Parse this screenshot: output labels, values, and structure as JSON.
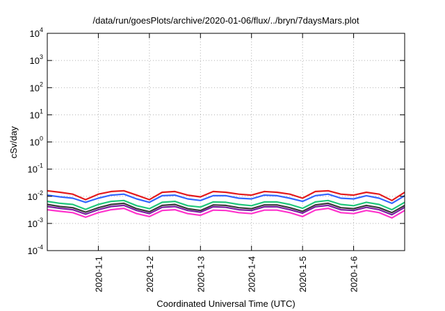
{
  "chart_data": {
    "type": "line",
    "title": "/data/run/goesPlots/archive/2020-01-06/flux/../bryn/7daysMars.plot",
    "xlabel": "Coordinated Universal Time (UTC)",
    "ylabel": "cSv/day",
    "y_scale": "log",
    "ylim": [
      0.0001,
      10000
    ],
    "y_ticks": [
      {
        "value": 0.0001,
        "base": "10",
        "exp": "-4"
      },
      {
        "value": 0.001,
        "base": "10",
        "exp": "-3"
      },
      {
        "value": 0.01,
        "base": "10",
        "exp": "-2"
      },
      {
        "value": 0.1,
        "base": "10",
        "exp": "-1"
      },
      {
        "value": 1,
        "base": "10",
        "exp": "0"
      },
      {
        "value": 10,
        "base": "10",
        "exp": "1"
      },
      {
        "value": 100,
        "base": "10",
        "exp": "2"
      },
      {
        "value": 1000,
        "base": "10",
        "exp": "3"
      },
      {
        "value": 10000,
        "base": "10",
        "exp": "4"
      }
    ],
    "xlim": [
      "2019-12-31T00:00",
      "2020-01-07T00:00"
    ],
    "x_ticks": [
      {
        "value": "2020-01-01T00:00",
        "label": "2020-1-1"
      },
      {
        "value": "2020-01-02T00:00",
        "label": "2020-1-2"
      },
      {
        "value": "2020-01-03T00:00",
        "label": "2020-1-3"
      },
      {
        "value": "2020-01-04T00:00",
        "label": "2020-1-4"
      },
      {
        "value": "2020-01-05T00:00",
        "label": "2020-1-5"
      },
      {
        "value": "2020-01-06T00:00",
        "label": "2020-1-6"
      }
    ],
    "grid": true,
    "x": [
      "2019-12-31T00:00",
      "2019-12-31T06:00",
      "2019-12-31T12:00",
      "2019-12-31T18:00",
      "2020-01-01T00:00",
      "2020-01-01T06:00",
      "2020-01-01T12:00",
      "2020-01-01T18:00",
      "2020-01-02T00:00",
      "2020-01-02T06:00",
      "2020-01-02T12:00",
      "2020-01-02T18:00",
      "2020-01-03T00:00",
      "2020-01-03T06:00",
      "2020-01-03T12:00",
      "2020-01-03T18:00",
      "2020-01-04T00:00",
      "2020-01-04T06:00",
      "2020-01-04T12:00",
      "2020-01-04T18:00",
      "2020-01-05T00:00",
      "2020-01-05T06:00",
      "2020-01-05T12:00",
      "2020-01-05T18:00",
      "2020-01-06T00:00",
      "2020-01-06T06:00",
      "2020-01-06T12:00",
      "2020-01-06T18:00",
      "2020-01-07T00:00"
    ],
    "series": [
      {
        "color": "#e41a1c",
        "values": [
          0.016,
          0.014,
          0.012,
          0.0075,
          0.012,
          0.015,
          0.016,
          0.011,
          0.0075,
          0.014,
          0.015,
          0.011,
          0.0095,
          0.015,
          0.014,
          0.012,
          0.011,
          0.015,
          0.014,
          0.012,
          0.0085,
          0.015,
          0.016,
          0.012,
          0.011,
          0.014,
          0.012,
          0.007,
          0.014
        ]
      },
      {
        "color": "#3366ff",
        "values": [
          0.011,
          0.0095,
          0.0085,
          0.006,
          0.0085,
          0.011,
          0.012,
          0.008,
          0.006,
          0.0105,
          0.011,
          0.008,
          0.007,
          0.0105,
          0.0105,
          0.0085,
          0.008,
          0.011,
          0.0105,
          0.0085,
          0.0065,
          0.0105,
          0.012,
          0.0085,
          0.008,
          0.0105,
          0.0085,
          0.0055,
          0.0105
        ]
      },
      {
        "color": "#1fc77a",
        "values": [
          0.0065,
          0.0055,
          0.005,
          0.0033,
          0.005,
          0.0065,
          0.007,
          0.0045,
          0.0035,
          0.006,
          0.0065,
          0.0045,
          0.004,
          0.0062,
          0.006,
          0.005,
          0.0045,
          0.0062,
          0.0062,
          0.005,
          0.0036,
          0.0062,
          0.007,
          0.005,
          0.0045,
          0.006,
          0.005,
          0.0032,
          0.006
        ]
      },
      {
        "color": "#3a3a3a",
        "values": [
          0.005,
          0.0042,
          0.0038,
          0.0026,
          0.0038,
          0.005,
          0.0055,
          0.0035,
          0.0027,
          0.0046,
          0.005,
          0.0035,
          0.003,
          0.0048,
          0.0046,
          0.0038,
          0.0035,
          0.0048,
          0.0048,
          0.0038,
          0.0028,
          0.0048,
          0.0055,
          0.0038,
          0.0035,
          0.0046,
          0.0038,
          0.0025,
          0.0046
        ]
      },
      {
        "color": "#7a1fa2",
        "values": [
          0.0042,
          0.0036,
          0.0032,
          0.0022,
          0.0032,
          0.0042,
          0.0046,
          0.003,
          0.0023,
          0.0039,
          0.0042,
          0.003,
          0.0026,
          0.0041,
          0.0039,
          0.0032,
          0.003,
          0.0041,
          0.0041,
          0.0032,
          0.0024,
          0.0041,
          0.0046,
          0.0032,
          0.003,
          0.0039,
          0.0032,
          0.0021,
          0.0039
        ]
      },
      {
        "color": "#ff33cc",
        "values": [
          0.0032,
          0.0028,
          0.0025,
          0.0017,
          0.0025,
          0.0032,
          0.0036,
          0.0023,
          0.0018,
          0.003,
          0.0032,
          0.0023,
          0.002,
          0.0031,
          0.003,
          0.0025,
          0.0023,
          0.0031,
          0.0031,
          0.0025,
          0.0018,
          0.0031,
          0.0036,
          0.0025,
          0.0023,
          0.003,
          0.0025,
          0.0016,
          0.003
        ]
      }
    ]
  }
}
